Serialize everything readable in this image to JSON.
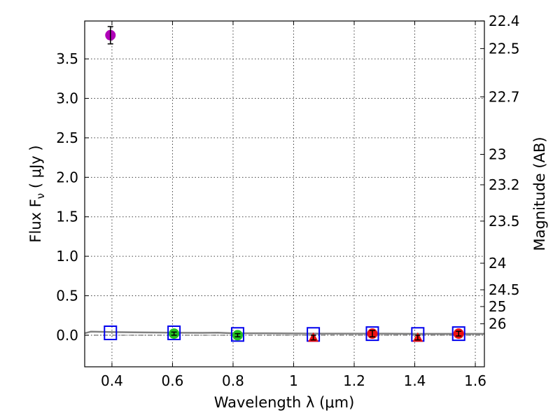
{
  "chart_data": {
    "type": "scatter",
    "xlabel": "Wavelength  λ (μm)",
    "ylabel": "Flux  F",
    "ylabel_sub": "ν",
    "ylabel_unit": "  ( μJy )",
    "y2label": "Magnitude (AB)",
    "xlim": [
      0.31,
      1.63
    ],
    "ylim": [
      -0.4,
      3.98
    ],
    "x_ticks": [
      {
        "value": 0.4,
        "label": "0.4"
      },
      {
        "value": 0.6,
        "label": "0.6"
      },
      {
        "value": 0.8,
        "label": "0.8"
      },
      {
        "value": 1.0,
        "label": "1"
      },
      {
        "value": 1.2,
        "label": "1.2"
      },
      {
        "value": 1.4,
        "label": "1.4"
      },
      {
        "value": 1.6,
        "label": "1.6"
      }
    ],
    "y_ticks": [
      {
        "value": 0.0,
        "label": "0.0"
      },
      {
        "value": 0.5,
        "label": "0.5"
      },
      {
        "value": 1.0,
        "label": "1.0"
      },
      {
        "value": 1.5,
        "label": "1.5"
      },
      {
        "value": 2.0,
        "label": "2.0"
      },
      {
        "value": 2.5,
        "label": "2.5"
      },
      {
        "value": 3.0,
        "label": "3.0"
      },
      {
        "value": 3.5,
        "label": "3.5"
      }
    ],
    "y2_ticks": [
      {
        "mag": 22.4,
        "label": "22.4"
      },
      {
        "mag": 22.5,
        "label": "22.5"
      },
      {
        "mag": 22.7,
        "label": "22.7"
      },
      {
        "mag": 23.0,
        "label": "23"
      },
      {
        "mag": 23.2,
        "label": "23.2"
      },
      {
        "mag": 23.5,
        "label": "23.5"
      },
      {
        "mag": 24.0,
        "label": "24"
      },
      {
        "mag": 24.5,
        "label": "24.5"
      },
      {
        "mag": 25.0,
        "label": "25"
      },
      {
        "mag": 26.0,
        "label": "26"
      }
    ],
    "model_points": [
      {
        "x": 0.395,
        "y": 0.03
      },
      {
        "x": 0.605,
        "y": 0.03
      },
      {
        "x": 0.815,
        "y": 0.01
      },
      {
        "x": 1.065,
        "y": 0.01
      },
      {
        "x": 1.26,
        "y": 0.02
      },
      {
        "x": 1.41,
        "y": 0.01
      },
      {
        "x": 1.545,
        "y": 0.02
      }
    ],
    "observed_points": [
      {
        "x": 0.395,
        "y": 3.8,
        "err": 0.11,
        "shape": "circle",
        "color": "#b000b8"
      },
      {
        "x": 0.605,
        "y": 0.02,
        "err": 0.02,
        "shape": "circle",
        "color": "#22c022"
      },
      {
        "x": 0.815,
        "y": 0.0,
        "err": 0.02,
        "shape": "circle",
        "color": "#22c022"
      },
      {
        "x": 1.065,
        "y": -0.03,
        "err": 0.03,
        "shape": "triangle",
        "color": "#ee1111"
      },
      {
        "x": 1.26,
        "y": 0.02,
        "err": 0.04,
        "shape": "circle",
        "color": "#ee1111"
      },
      {
        "x": 1.41,
        "y": -0.03,
        "err": 0.03,
        "shape": "triangle",
        "color": "#ee1111"
      },
      {
        "x": 1.545,
        "y": 0.02,
        "err": 0.03,
        "shape": "circle",
        "color": "#ee1111"
      }
    ],
    "sed_curve": [
      {
        "x": 0.31,
        "y": 0.025
      },
      {
        "x": 0.33,
        "y": 0.045
      },
      {
        "x": 0.4,
        "y": 0.04
      },
      {
        "x": 0.5,
        "y": 0.035
      },
      {
        "x": 0.6,
        "y": 0.032
      },
      {
        "x": 0.7,
        "y": 0.03
      },
      {
        "x": 0.75,
        "y": 0.033
      },
      {
        "x": 0.8,
        "y": 0.025
      },
      {
        "x": 0.9,
        "y": 0.025
      },
      {
        "x": 1.0,
        "y": 0.022
      },
      {
        "x": 1.1,
        "y": 0.02
      },
      {
        "x": 1.2,
        "y": 0.02
      },
      {
        "x": 1.3,
        "y": 0.02
      },
      {
        "x": 1.4,
        "y": 0.018
      },
      {
        "x": 1.5,
        "y": 0.018
      },
      {
        "x": 1.63,
        "y": 0.018
      }
    ],
    "colors": {
      "model_box": "#0000ee",
      "sed_curve": "#808080",
      "errorbar": "#000000",
      "zero_line": "#555555"
    }
  }
}
